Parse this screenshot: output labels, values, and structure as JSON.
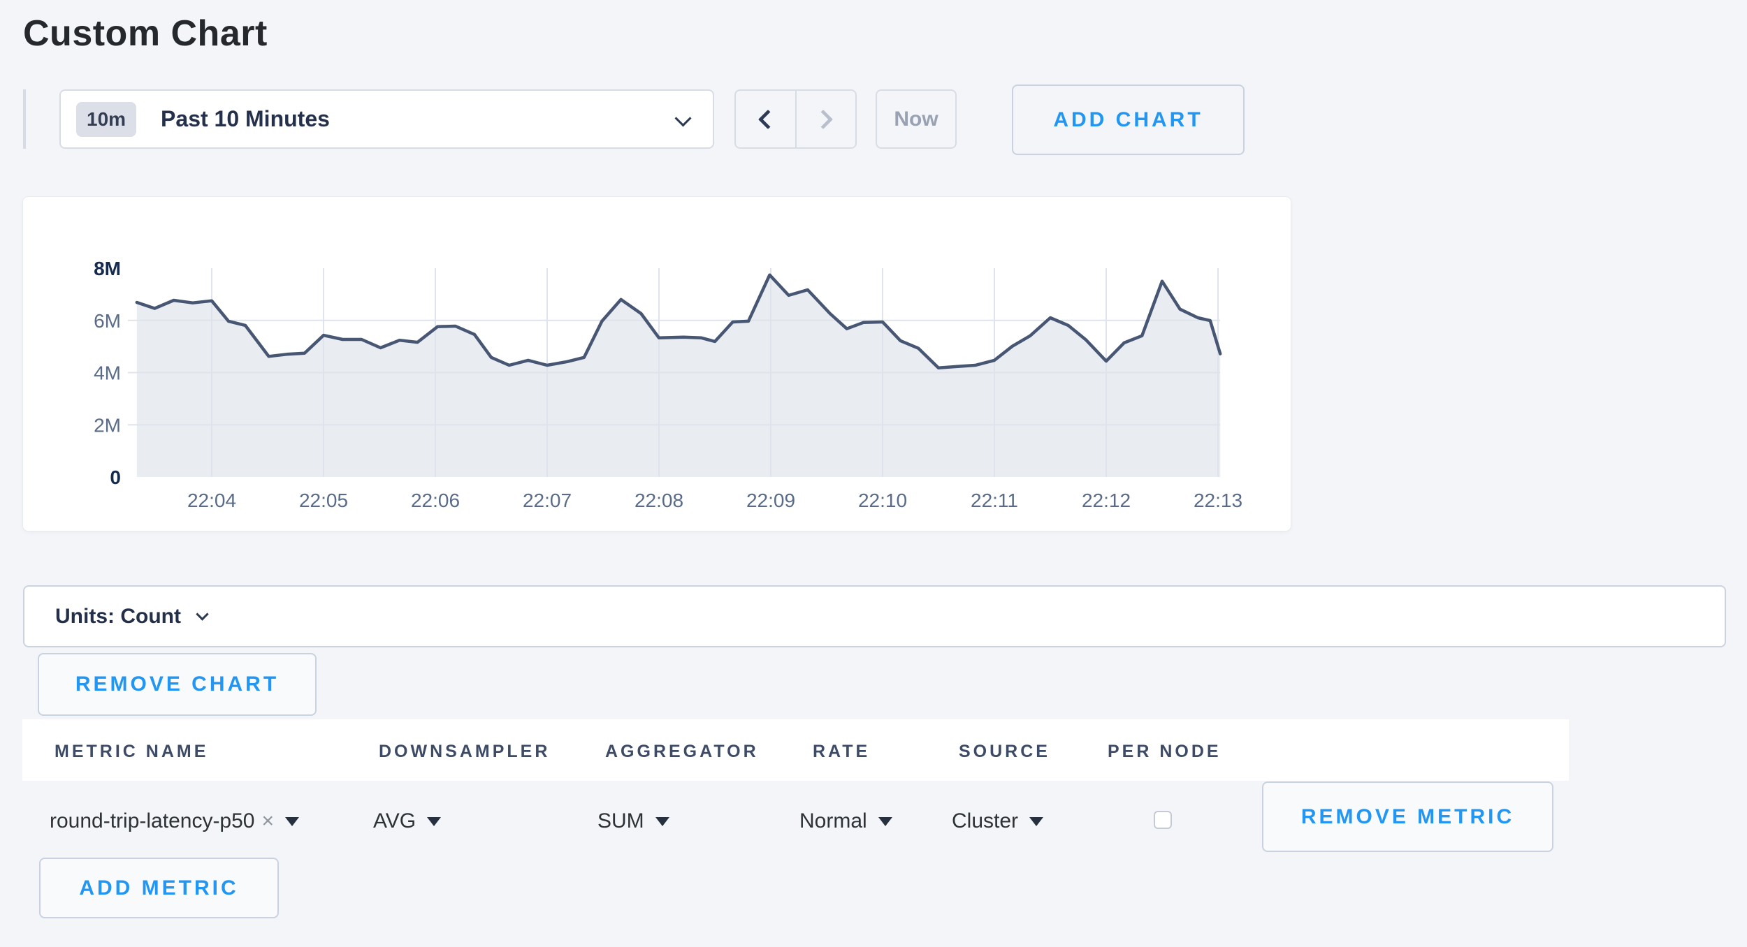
{
  "page": {
    "title": "Custom Chart"
  },
  "toolbar": {
    "time_window_badge": "10m",
    "time_window_label": "Past 10 Minutes",
    "prev_icon": "chevron-left",
    "next_icon": "chevron-right",
    "now_label": "Now",
    "add_chart_label": "ADD CHART"
  },
  "chart_data": {
    "type": "area",
    "title": "",
    "xlabel": "",
    "ylabel": "",
    "x_ticks": [
      "22:04",
      "22:05",
      "22:06",
      "22:07",
      "22:08",
      "22:09",
      "22:10",
      "22:11",
      "22:12",
      "22:13"
    ],
    "x_tick_minutes": [
      4,
      5,
      6,
      7,
      8,
      9,
      10,
      11,
      12,
      13
    ],
    "y_ticks": [
      "0",
      "2M",
      "4M",
      "6M",
      "8M"
    ],
    "y_tick_values_millions": [
      0,
      2,
      4,
      6,
      8
    ],
    "y_tick_strong": [
      true,
      false,
      false,
      false,
      true
    ],
    "ylim_millions": [
      0,
      8
    ],
    "grid": true,
    "legend": "none",
    "line_color": "#475672",
    "fill_color": "#e9ecf1",
    "grid_color": "#dfe4ec",
    "axis_label_color": "#5a6b88",
    "axis_strong_color": "#152a4d",
    "series": [
      {
        "name": "round-trip-latency-p50",
        "t_minutes": [
          3.33,
          3.49,
          3.66,
          3.83,
          4.0,
          4.15,
          4.3,
          4.51,
          4.67,
          4.83,
          5.0,
          5.17,
          5.34,
          5.51,
          5.68,
          5.84,
          6.02,
          6.18,
          6.35,
          6.5,
          6.66,
          6.83,
          7.0,
          7.18,
          7.33,
          7.49,
          7.66,
          7.84,
          8.0,
          8.22,
          8.38,
          8.5,
          8.66,
          8.8,
          8.99,
          9.16,
          9.33,
          9.53,
          9.68,
          9.83,
          10.0,
          10.16,
          10.32,
          10.5,
          10.66,
          10.83,
          11.0,
          11.16,
          11.32,
          11.5,
          11.66,
          11.82,
          12.0,
          12.16,
          12.32,
          12.5,
          12.66,
          12.82,
          12.93,
          13.02
        ],
        "values_millions": [
          6.69,
          6.46,
          6.77,
          6.67,
          6.75,
          5.97,
          5.81,
          4.62,
          4.7,
          4.74,
          5.43,
          5.27,
          5.27,
          4.95,
          5.24,
          5.16,
          5.76,
          5.78,
          5.46,
          4.58,
          4.28,
          4.47,
          4.28,
          4.42,
          4.58,
          5.97,
          6.8,
          6.26,
          5.33,
          5.36,
          5.33,
          5.19,
          5.94,
          5.97,
          7.74,
          6.96,
          7.17,
          6.26,
          5.68,
          5.92,
          5.94,
          5.22,
          4.93,
          4.18,
          4.23,
          4.28,
          4.47,
          5.01,
          5.41,
          6.1,
          5.81,
          5.25,
          4.44,
          5.14,
          5.41,
          7.5,
          6.43,
          6.1,
          5.99,
          4.72
        ]
      }
    ]
  },
  "units_bar": {
    "label": "Units: Count",
    "chevron_icon": "chevron-down"
  },
  "chart_actions": {
    "remove_chart_label": "REMOVE CHART",
    "add_metric_label": "ADD METRIC"
  },
  "metrics_table": {
    "headers": [
      "METRIC NAME",
      "DOWNSAMPLER",
      "AGGREGATOR",
      "RATE",
      "SOURCE",
      "PER NODE"
    ],
    "rows": [
      {
        "metric_name": "round-trip-latency-p50",
        "clear_icon": "x",
        "downsampler": "AVG",
        "aggregator": "SUM",
        "rate": "Normal",
        "source": "Cluster",
        "per_node_checked": false,
        "remove_label": "REMOVE METRIC"
      }
    ]
  },
  "colors": {
    "page_background": "#f3f5f9",
    "card_background": "#ffffff",
    "accent_blue": "#2196f3",
    "dark_navy_text": "#25304a",
    "muted_text": "#99a2b2",
    "border_light": "#d8dde5"
  }
}
